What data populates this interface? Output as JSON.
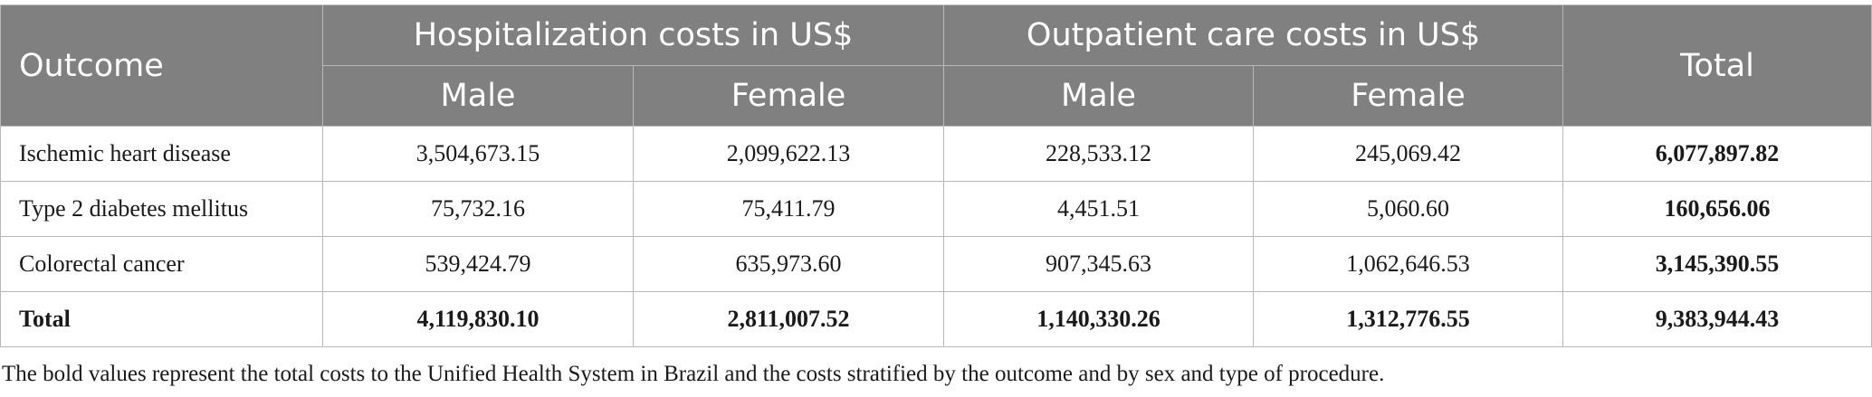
{
  "table": {
    "header": {
      "outcome": "Outcome",
      "hospitalization": "Hospitalization costs in US$",
      "outpatient": "Outpatient care costs in US$",
      "total": "Total",
      "male": "Male",
      "female": "Female"
    },
    "rows": [
      {
        "outcome": "Ischemic heart disease",
        "hosp_male": "3,504,673.15",
        "hosp_female": "2,099,622.13",
        "out_male": "228,533.12",
        "out_female": "245,069.42",
        "total": "6,077,897.82"
      },
      {
        "outcome": "Type 2 diabetes mellitus",
        "hosp_male": "75,732.16",
        "hosp_female": "75,411.79",
        "out_male": "4,451.51",
        "out_female": "5,060.60",
        "total": "160,656.06"
      },
      {
        "outcome": "Colorectal cancer",
        "hosp_male": "539,424.79",
        "hosp_female": "635,973.60",
        "out_male": "907,345.63",
        "out_female": "1,062,646.53",
        "total": "3,145,390.55"
      }
    ],
    "total_row": {
      "outcome": "Total",
      "hosp_male": "4,119,830.10",
      "hosp_female": "2,811,007.52",
      "out_male": "1,140,330.26",
      "out_female": "1,312,776.55",
      "total": "9,383,944.43"
    }
  },
  "footnote": "The bold values represent the total costs to the Unified Health System in Brazil and the costs stratified by the outcome and by sex and type of procedure."
}
